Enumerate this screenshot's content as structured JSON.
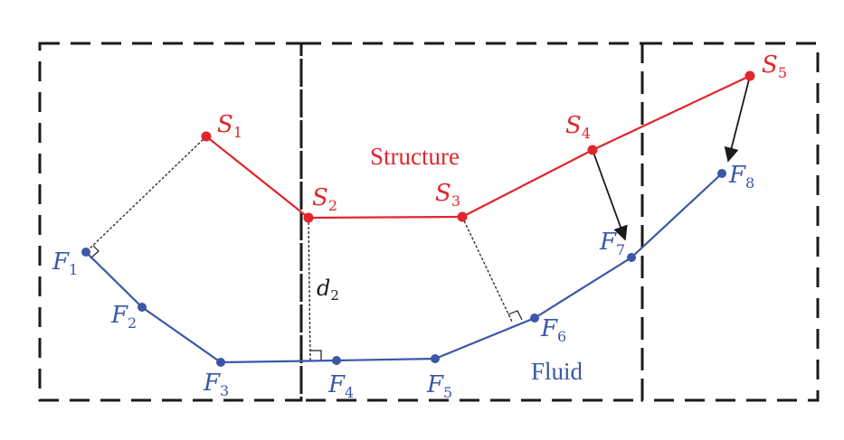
{
  "diagram": {
    "colors": {
      "structure": "#e0262b",
      "fluid": "#3a57a8",
      "box": "#1a1a1a",
      "projection": "#333333"
    },
    "region_labels": {
      "structure": "Structure",
      "fluid": "Fluid"
    },
    "structure_nodes": [
      {
        "name": "S",
        "sub": "1"
      },
      {
        "name": "S",
        "sub": "2"
      },
      {
        "name": "S",
        "sub": "3"
      },
      {
        "name": "S",
        "sub": "4"
      },
      {
        "name": "S",
        "sub": "5"
      }
    ],
    "fluid_nodes": [
      {
        "name": "F",
        "sub": "1"
      },
      {
        "name": "F",
        "sub": "2"
      },
      {
        "name": "F",
        "sub": "3"
      },
      {
        "name": "F",
        "sub": "4"
      },
      {
        "name": "F",
        "sub": "5"
      },
      {
        "name": "F",
        "sub": "6"
      },
      {
        "name": "F",
        "sub": "7"
      },
      {
        "name": "F",
        "sub": "8"
      }
    ],
    "distance_label": {
      "name": "d",
      "sub": "2"
    }
  }
}
